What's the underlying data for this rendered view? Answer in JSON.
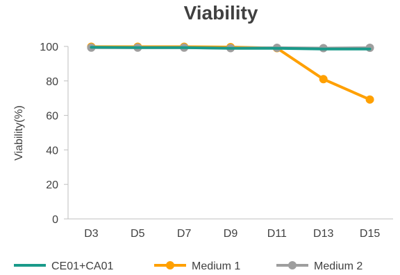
{
  "chart_data": {
    "type": "line",
    "title": "Viability",
    "xlabel": "",
    "ylabel": "Viability(%)",
    "categories": [
      "D3",
      "D5",
      "D7",
      "D9",
      "D11",
      "D13",
      "D15"
    ],
    "ylim": [
      0,
      100
    ],
    "yticks": [
      "0",
      "20",
      "40",
      "60",
      "80",
      "100"
    ],
    "grid": false,
    "legend_position": "bottom",
    "series": [
      {
        "name": "CE01+CA01",
        "color": "#1a9a8a",
        "marker": "none",
        "values": [
          99.5,
          99.3,
          99.3,
          98.9,
          98.9,
          98.5,
          98.5
        ]
      },
      {
        "name": "Medium 1",
        "color": "#ffa000",
        "marker": "circle",
        "values": [
          99.8,
          99.8,
          99.8,
          99.6,
          99.0,
          81.0,
          69.2
        ]
      },
      {
        "name": "Medium 2",
        "color": "#9e9e9e",
        "marker": "circle",
        "values": [
          99.3,
          99.3,
          99.3,
          99.0,
          99.2,
          99.0,
          99.2
        ]
      }
    ]
  }
}
